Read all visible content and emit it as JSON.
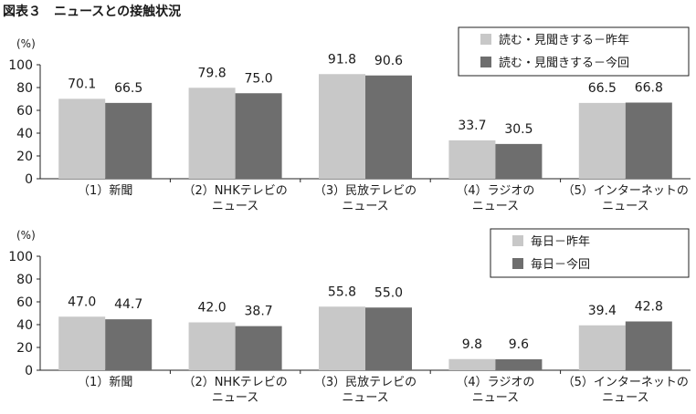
{
  "figure_title": "図表３　ニュースとの接触状況",
  "colors": {
    "previous": "#c8c8c8",
    "current": "#6e6e6e",
    "axis": "#222222",
    "text": "#1a1a1a"
  },
  "chart_data": [
    {
      "type": "bar",
      "ylabel": "(%)",
      "ylim": [
        0,
        100
      ],
      "yticks": [
        0,
        20,
        40,
        60,
        80,
        100
      ],
      "legend_position": "top-right",
      "categories": [
        [
          "（1）新聞"
        ],
        [
          "（2）NHKテレビの",
          "ニュース"
        ],
        [
          "（3）民放テレビの",
          "ニュース"
        ],
        [
          "（4）ラジオの",
          "ニュース"
        ],
        [
          "（5）インターネットの",
          "ニュース"
        ]
      ],
      "series": [
        {
          "name": "読む・見聞きする－昨年",
          "color": "#c8c8c8",
          "values": [
            70.1,
            79.8,
            91.8,
            33.7,
            66.5
          ]
        },
        {
          "name": "読む・見聞きする－今回",
          "color": "#6e6e6e",
          "values": [
            66.5,
            75.0,
            90.6,
            30.5,
            66.8
          ]
        }
      ]
    },
    {
      "type": "bar",
      "ylabel": "(%)",
      "ylim": [
        0,
        100
      ],
      "yticks": [
        0,
        20,
        40,
        60,
        80,
        100
      ],
      "legend_position": "top-right",
      "categories": [
        [
          "（1）新聞"
        ],
        [
          "（2）NHKテレビの",
          "ニュース"
        ],
        [
          "（3）民放テレビの",
          "ニュース"
        ],
        [
          "（4）ラジオの",
          "ニュース"
        ],
        [
          "（5）インターネットの",
          "ニュース"
        ]
      ],
      "series": [
        {
          "name": "毎日－昨年",
          "color": "#c8c8c8",
          "values": [
            47.0,
            42.0,
            55.8,
            9.8,
            39.4
          ]
        },
        {
          "name": "毎日－今回",
          "color": "#6e6e6e",
          "values": [
            44.7,
            38.7,
            55.0,
            9.6,
            42.8
          ]
        }
      ]
    }
  ]
}
